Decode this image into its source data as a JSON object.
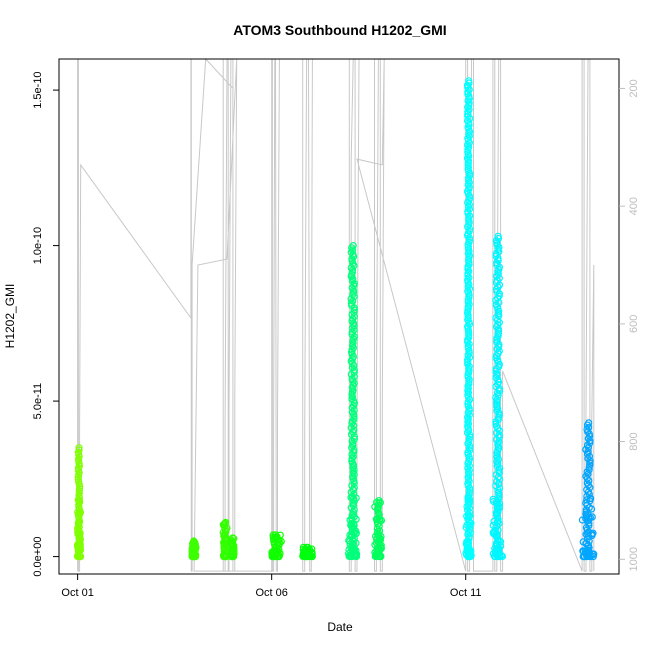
{
  "chart_data": {
    "type": "scatter",
    "title": "ATOM3 Southbound H1202_GMI",
    "xlabel": "Date",
    "ylabel": "H1202_GMI",
    "x_ticks": [
      {
        "value": 1.0,
        "label": "Oct 01"
      },
      {
        "value": 6.0,
        "label": "Oct 06"
      },
      {
        "value": 11.0,
        "label": "Oct 11"
      }
    ],
    "xlim": [
      0.52,
      14.95
    ],
    "y_ticks": [
      {
        "value": 0,
        "label": "0.0e+00"
      },
      {
        "value": 5e-11,
        "label": "5.0e-11"
      },
      {
        "value": 1e-10,
        "label": "1.0e-10"
      },
      {
        "value": 1.5e-10,
        "label": "1.5e-10"
      }
    ],
    "ylim": [
      -5.6e-12,
      1.6e-10
    ],
    "y2_ticks": [
      {
        "value": 200,
        "label": "200"
      },
      {
        "value": 400,
        "label": "400"
      },
      {
        "value": 600,
        "label": "600"
      },
      {
        "value": 800,
        "label": "800"
      },
      {
        "value": 1000,
        "label": "1000"
      }
    ],
    "y2lim": [
      1025,
      150
    ],
    "y2_color": "#bebebe",
    "grid": false,
    "clusters": [
      {
        "x": 0.99,
        "x2": 1.08,
        "ymin": 0,
        "ymax": 3.5e-11,
        "color": "#7fff00"
      },
      {
        "x": 3.95,
        "x2": 4.05,
        "ymin": 0,
        "ymax": 5e-12,
        "color": "#3dff00"
      },
      {
        "x": 4.75,
        "x2": 4.85,
        "ymin": 0,
        "ymax": 1.1e-11,
        "color": "#33ff00"
      },
      {
        "x": 4.95,
        "x2": 5.03,
        "ymin": 0,
        "ymax": 6e-12,
        "color": "#2bff00"
      },
      {
        "x": 6.0,
        "x2": 6.25,
        "ymin": 0,
        "ymax": 7e-12,
        "color": "#11ff00"
      },
      {
        "x": 6.8,
        "x2": 7.05,
        "ymin": 0,
        "ymax": 3e-12,
        "color": "#00ff0f"
      },
      {
        "x": 7.98,
        "x2": 8.2,
        "ymin": 0,
        "ymax": 1e-10,
        "color": "#00ff7b"
      },
      {
        "x": 8.65,
        "x2": 8.85,
        "ymin": 0,
        "ymax": 1.8e-11,
        "color": "#00ff5d"
      },
      {
        "x": 11.0,
        "x2": 11.15,
        "ymin": 0,
        "ymax": 1.53e-10,
        "color": "#00ffff"
      },
      {
        "x": 11.7,
        "x2": 11.95,
        "ymin": 0,
        "ymax": 1.03e-10,
        "color": "#00f6ff"
      },
      {
        "x": 14.0,
        "x2": 14.3,
        "ymin": 0,
        "ymax": 4.3e-11,
        "color": "#00a6ff"
      }
    ],
    "pressure_trace": [
      [
        1.0,
        1020
      ],
      [
        1.0,
        470
      ],
      [
        1.0,
        150
      ],
      [
        1.02,
        150
      ],
      [
        1.02,
        1020
      ],
      [
        1.05,
        1020
      ],
      [
        1.05,
        780
      ],
      [
        1.08,
        330
      ],
      [
        3.92,
        590
      ],
      [
        3.92,
        150
      ],
      [
        3.93,
        150
      ],
      [
        3.93,
        1020
      ],
      [
        3.95,
        1020
      ],
      [
        3.95,
        500
      ],
      [
        4.3,
        150
      ],
      [
        5.0,
        200
      ],
      [
        5.0,
        150
      ],
      [
        4.75,
        150
      ],
      [
        4.75,
        1020
      ],
      [
        4.8,
        1020
      ],
      [
        4.8,
        760
      ],
      [
        4.85,
        150
      ],
      [
        4.88,
        150
      ],
      [
        4.88,
        1020
      ],
      [
        4.9,
        1020
      ],
      [
        4.9,
        750
      ],
      [
        4.95,
        150
      ],
      [
        5.0,
        150
      ],
      [
        5.0,
        1020
      ],
      [
        5.05,
        1020
      ],
      [
        5.05,
        720
      ],
      [
        5.1,
        150
      ],
      [
        5.1,
        150
      ],
      [
        4.85,
        490
      ],
      [
        4.1,
        500
      ],
      [
        4.0,
        1020
      ],
      [
        6.0,
        1020
      ],
      [
        6.0,
        150
      ],
      [
        6.02,
        150
      ],
      [
        6.02,
        1020
      ],
      [
        6.05,
        1020
      ],
      [
        6.05,
        790
      ],
      [
        6.08,
        150
      ],
      [
        6.1,
        150
      ],
      [
        6.12,
        1020
      ],
      [
        6.15,
        1020
      ],
      [
        6.15,
        770
      ],
      [
        6.2,
        150
      ],
      [
        6.8,
        150
      ],
      [
        6.8,
        1020
      ],
      [
        6.85,
        1020
      ],
      [
        6.85,
        780
      ],
      [
        6.9,
        150
      ],
      [
        6.95,
        150
      ],
      [
        6.98,
        1020
      ],
      [
        7.02,
        1020
      ],
      [
        7.02,
        770
      ],
      [
        7.05,
        150
      ],
      [
        8.0,
        150
      ],
      [
        8.0,
        1020
      ],
      [
        8.05,
        1020
      ],
      [
        8.05,
        320
      ],
      [
        8.1,
        150
      ],
      [
        8.15,
        150
      ],
      [
        8.15,
        1020
      ],
      [
        8.2,
        1020
      ],
      [
        8.2,
        760
      ],
      [
        8.25,
        150
      ],
      [
        8.65,
        150
      ],
      [
        8.65,
        1020
      ],
      [
        8.7,
        1020
      ],
      [
        8.7,
        720
      ],
      [
        8.75,
        150
      ],
      [
        8.8,
        150
      ],
      [
        8.8,
        1020
      ],
      [
        8.85,
        1020
      ],
      [
        8.85,
        740
      ],
      [
        8.9,
        150
      ],
      [
        8.85,
        330
      ],
      [
        8.2,
        320
      ],
      [
        11.0,
        1020
      ],
      [
        11.0,
        150
      ],
      [
        11.05,
        150
      ],
      [
        11.05,
        1020
      ],
      [
        11.1,
        1020
      ],
      [
        11.1,
        700
      ],
      [
        11.15,
        150
      ],
      [
        11.2,
        150
      ],
      [
        11.2,
        1020
      ],
      [
        11.7,
        1020
      ],
      [
        11.7,
        150
      ],
      [
        11.75,
        150
      ],
      [
        11.75,
        1020
      ],
      [
        11.8,
        1020
      ],
      [
        11.8,
        690
      ],
      [
        11.85,
        150
      ],
      [
        11.9,
        150
      ],
      [
        11.9,
        1020
      ],
      [
        11.95,
        1020
      ],
      [
        11.95,
        680
      ],
      [
        14.0,
        1020
      ],
      [
        14.0,
        150
      ],
      [
        14.05,
        150
      ],
      [
        14.05,
        1020
      ],
      [
        14.1,
        1020
      ],
      [
        14.1,
        750
      ],
      [
        14.15,
        150
      ],
      [
        14.2,
        150
      ],
      [
        14.2,
        1020
      ],
      [
        14.25,
        1020
      ],
      [
        14.25,
        760
      ],
      [
        14.3,
        500
      ],
      [
        14.3,
        1020
      ]
    ]
  }
}
